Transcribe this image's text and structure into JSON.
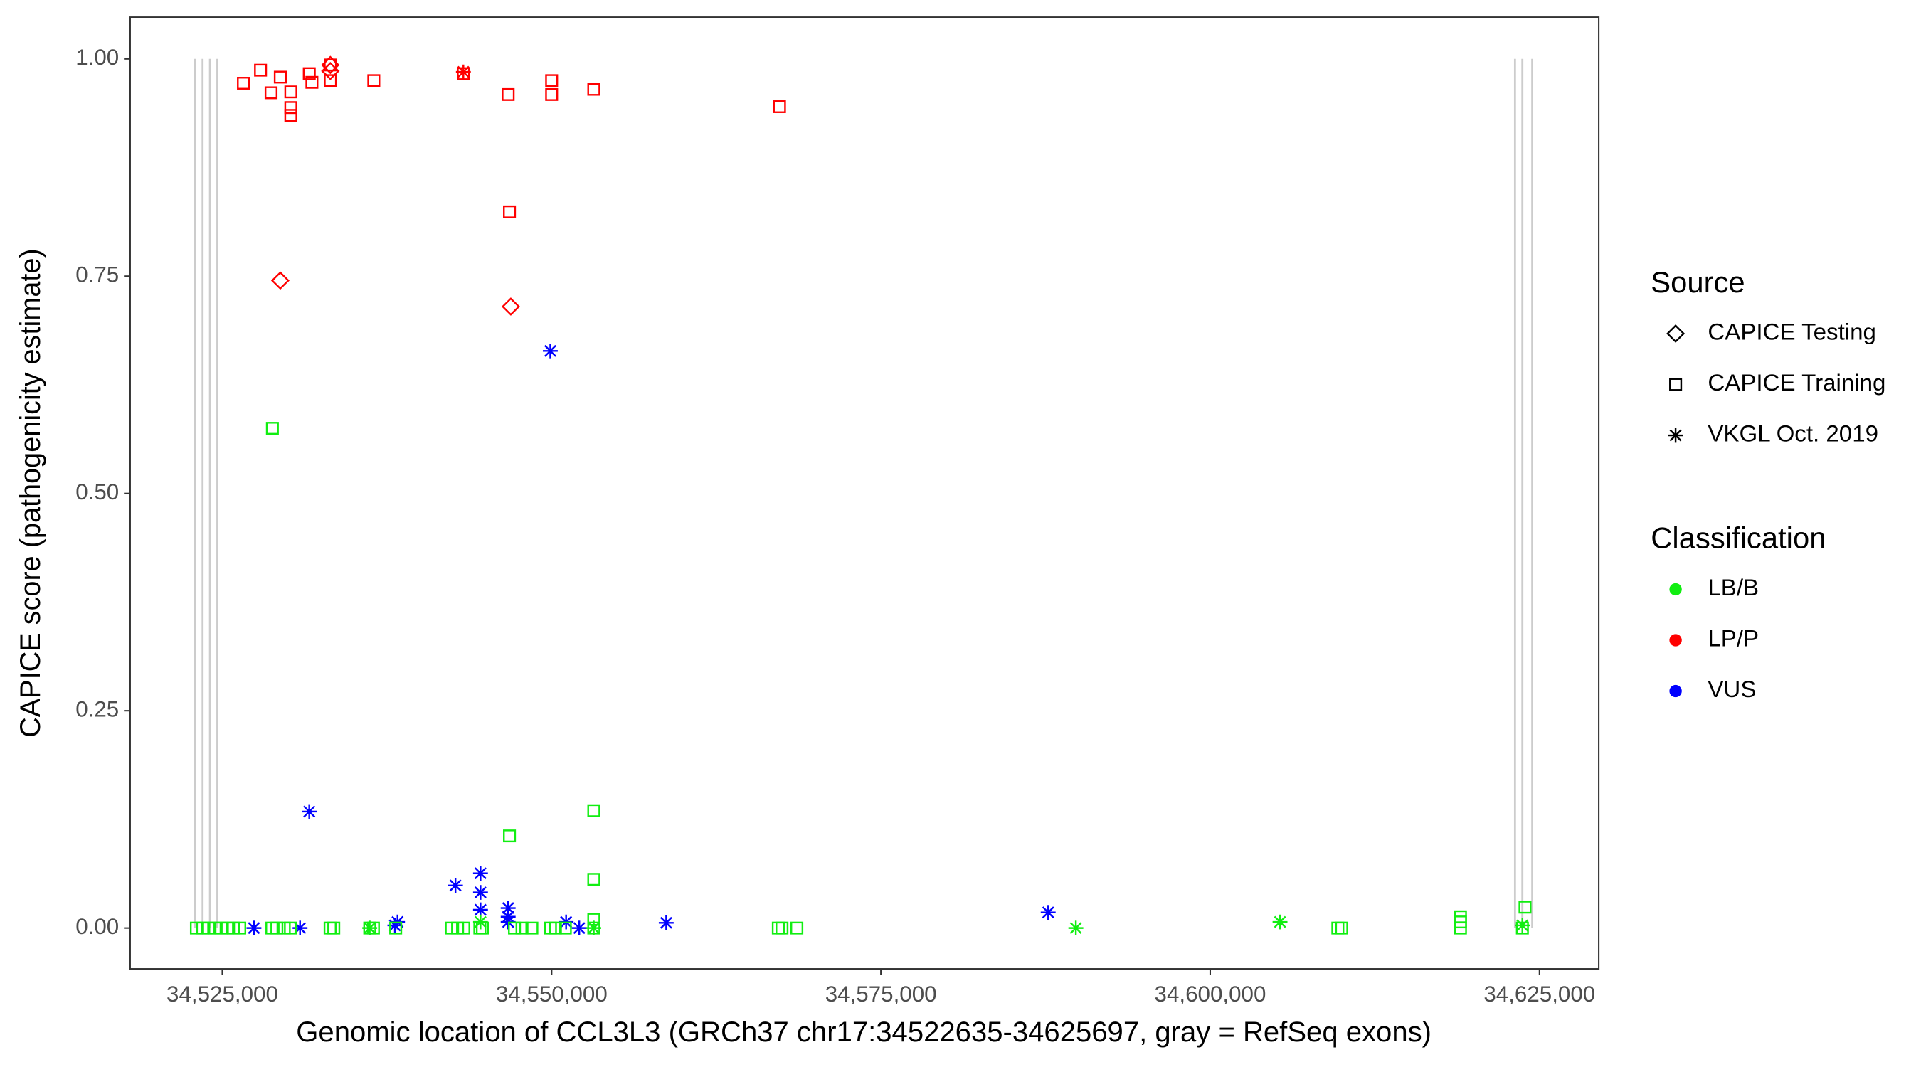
{
  "chart_data": {
    "type": "scatter",
    "x_label": "Genomic location of CCL3L3 (GRCh37 chr17:34522635-34625697, gray = RefSeq exons)",
    "y_label": "CAPICE score (pathogenicity estimate)",
    "xlim": [
      34518000,
      34629500
    ],
    "ylim": [
      -0.047,
      1.048
    ],
    "xticks": [
      {
        "value": 34525000,
        "label": "34,525,000"
      },
      {
        "value": 34550000,
        "label": "34,550,000"
      },
      {
        "value": 34575000,
        "label": "34,575,000"
      },
      {
        "value": 34600000,
        "label": "34,600,000"
      },
      {
        "value": 34625000,
        "label": "34,625,000"
      }
    ],
    "yticks": [
      {
        "value": 0,
        "label": "0.00"
      },
      {
        "value": 0.25,
        "label": "0.25"
      },
      {
        "value": 0.5,
        "label": "0.50"
      },
      {
        "value": 0.75,
        "label": "0.75"
      },
      {
        "value": 1,
        "label": "1.00"
      }
    ],
    "exon_color": "#cccccc",
    "exons": [
      34522930,
      34523500,
      34524060,
      34524620,
      34623140,
      34623700,
      34624450
    ],
    "legend": [
      {
        "title": "Source",
        "items": [
          {
            "label": "CAPICE Testing",
            "shape": "diamond"
          },
          {
            "label": "CAPICE Training",
            "shape": "square"
          },
          {
            "label": "VKGL Oct. 2019",
            "shape": "star"
          }
        ]
      },
      {
        "title": "Classification",
        "items": [
          {
            "label": "LB/B",
            "color": "#11ee11"
          },
          {
            "label": "LP/P",
            "color": "#ff0000"
          },
          {
            "label": "VUS",
            "color": "#0000ff"
          }
        ]
      }
    ],
    "series": [
      {
        "shape": "square",
        "color": "#ff0000",
        "x": [
          34526600,
          34527900,
          34528700,
          34529400,
          34530200,
          34530200,
          34530200,
          34531600,
          34531800,
          34533200,
          34533200,
          34536500,
          34543300,
          34546700,
          34546800,
          34550000,
          34550000,
          34553200,
          34567300
        ],
        "y": [
          0.972,
          0.987,
          0.961,
          0.979,
          0.962,
          0.944,
          0.935,
          0.983,
          0.973,
          0.975,
          0.993,
          0.975,
          0.983,
          0.959,
          0.824,
          0.975,
          0.959,
          0.965,
          0.945
        ]
      },
      {
        "shape": "diamond",
        "color": "#ff0000",
        "x": [
          34533200,
          34533200,
          34529400,
          34546900
        ],
        "y": [
          0.993,
          0.986,
          0.745,
          0.715
        ]
      },
      {
        "shape": "star",
        "color": "#ff0000",
        "x": [
          34543300
        ],
        "y": [
          0.985
        ]
      },
      {
        "shape": "star",
        "color": "#0000ff",
        "x": [
          34549900,
          34531600,
          34542700,
          34544600,
          34544600,
          34544600,
          34546700,
          34546700,
          34546700,
          34538300,
          34538100,
          34527400,
          34530900,
          34551100,
          34552100,
          34558700,
          34587700
        ],
        "y": [
          0.664,
          0.134,
          0.049,
          0.063,
          0.041,
          0.021,
          0.023,
          0.013,
          0.007,
          0.007,
          0.003,
          0,
          0,
          0.007,
          0,
          0.006,
          0.018
        ]
      },
      {
        "shape": "square",
        "color": "#11ee11",
        "x": [
          34528800,
          34553200,
          34546800,
          34553200,
          34623900,
          34553200,
          34619000,
          34619000,
          34523030,
          34523500,
          34523970,
          34524440,
          34524910,
          34525380,
          34525850,
          34526320,
          34528760,
          34529140,
          34529700,
          34530170,
          34533180,
          34533460,
          34536190,
          34536470,
          34538160,
          34542390,
          34542860,
          34543330,
          34544550,
          34544740,
          34547180,
          34547750,
          34548500,
          34549910,
          34550290,
          34551040,
          34553200,
          34567210,
          34567490,
          34568620,
          34609690,
          34609980,
          34619000,
          34623700
        ],
        "y": [
          0.575,
          0.135,
          0.106,
          0.056,
          0.024,
          0.01,
          0.013,
          0.007,
          0,
          0,
          0,
          0,
          0,
          0,
          0,
          0,
          0,
          0,
          0,
          0,
          0,
          0,
          0,
          0,
          0,
          0,
          0,
          0,
          0,
          0,
          0,
          0,
          0,
          0,
          0,
          0,
          0,
          0,
          0,
          0,
          0,
          0,
          0,
          0
        ]
      },
      {
        "shape": "star",
        "color": "#11ee11",
        "x": [
          34589800,
          34605300,
          34623700,
          34544600,
          34536190,
          34553200
        ],
        "y": [
          0,
          0.007,
          0.003,
          0.007,
          0,
          0
        ]
      }
    ]
  }
}
